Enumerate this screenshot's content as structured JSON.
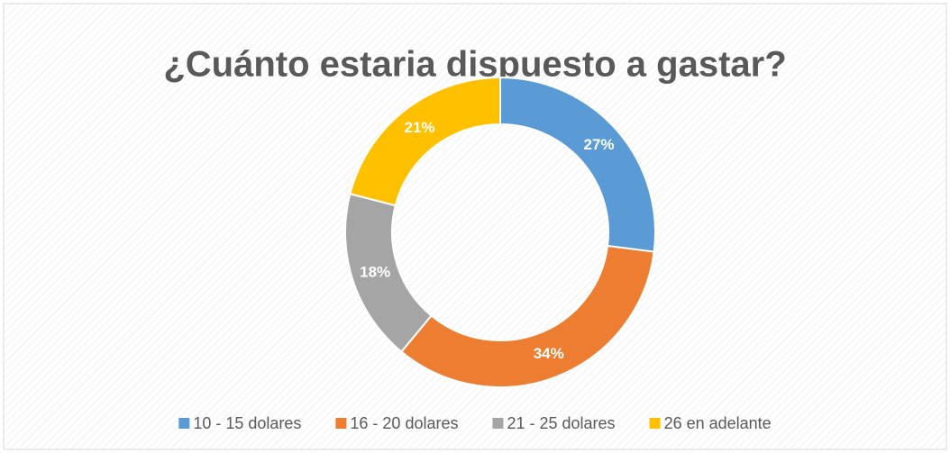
{
  "chart_data": {
    "type": "donut",
    "title": "¿Cuánto estaria dispuesto a gastar?",
    "categories": [
      "10 - 15 dolares",
      "16 - 20 dolares",
      "21 - 25 dolares",
      "26 en adelante"
    ],
    "values": [
      27,
      34,
      18,
      21
    ],
    "value_labels": [
      "27%",
      "34%",
      "18%",
      "21%"
    ],
    "colors": [
      "#5b9bd5",
      "#ed7d31",
      "#a5a5a5",
      "#ffc000"
    ],
    "legend": "bottom"
  }
}
